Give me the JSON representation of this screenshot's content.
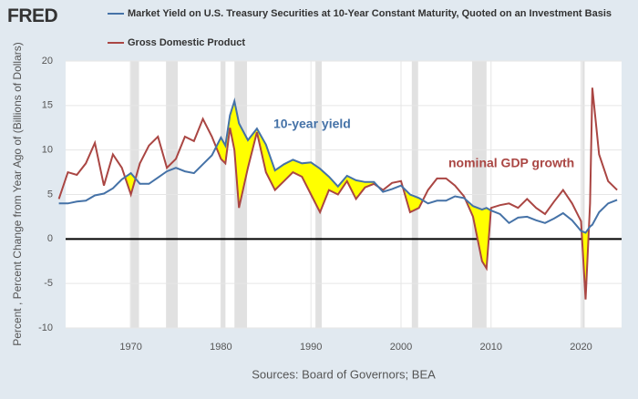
{
  "chart_data": {
    "type": "line",
    "logo": "FRED",
    "y_axis_label": "Percent , Percent Change from Year Ago of (Billions of Dollars)",
    "source": "Sources: Board of Governors; BEA",
    "annotations": [
      "10-year yield",
      "nominal GDP growth"
    ],
    "x": [
      1962,
      1963,
      1964,
      1965,
      1966,
      1967,
      1968,
      1969,
      1970,
      1971,
      1972,
      1973,
      1974,
      1975,
      1976,
      1977,
      1978,
      1979,
      1980,
      1980.5,
      1981,
      1981.5,
      1982,
      1983,
      1984,
      1985,
      1986,
      1987,
      1988,
      1989,
      1990,
      1991,
      1992,
      1993,
      1994,
      1995,
      1996,
      1997,
      1998,
      1999,
      2000,
      2001,
      2002,
      2003,
      2004,
      2005,
      2006,
      2007,
      2008,
      2009,
      2009.5,
      2010,
      2011,
      2012,
      2013,
      2014,
      2015,
      2016,
      2017,
      2018,
      2019,
      2020,
      2020.5,
      2021,
      2021.25,
      2022,
      2023,
      2024
    ],
    "series": [
      {
        "name": "Market Yield on U.S. Treasury Securities at 10-Year Constant Maturity, Quoted on an Investment Basis",
        "color": "#4572a7",
        "values": [
          4.0,
          4.0,
          4.2,
          4.3,
          4.9,
          5.1,
          5.7,
          6.7,
          7.4,
          6.2,
          6.2,
          6.9,
          7.6,
          8.0,
          7.6,
          7.4,
          8.4,
          9.4,
          11.4,
          10.5,
          13.9,
          15.5,
          13.0,
          11.1,
          12.4,
          10.6,
          7.7,
          8.4,
          8.9,
          8.5,
          8.6,
          7.9,
          7.0,
          5.9,
          7.1,
          6.6,
          6.4,
          6.4,
          5.3,
          5.6,
          6.0,
          5.0,
          4.6,
          4.0,
          4.3,
          4.3,
          4.8,
          4.6,
          3.7,
          3.3,
          3.5,
          3.2,
          2.8,
          1.8,
          2.4,
          2.5,
          2.1,
          1.8,
          2.3,
          2.9,
          2.1,
          0.9,
          0.7,
          1.4,
          1.6,
          3.0,
          4.0,
          4.4
        ]
      },
      {
        "name": "Gross Domestic Product",
        "color": "#aa4643",
        "values": [
          4.5,
          7.5,
          7.2,
          8.5,
          10.8,
          6.0,
          9.5,
          8.0,
          5.0,
          8.5,
          10.5,
          11.5,
          8.0,
          9.0,
          11.5,
          11.0,
          13.5,
          11.5,
          9.0,
          8.5,
          12.5,
          10.0,
          3.5,
          8.0,
          12.0,
          7.5,
          5.5,
          6.5,
          7.5,
          7.0,
          5.0,
          3.0,
          5.5,
          5.0,
          6.5,
          4.5,
          5.8,
          6.2,
          5.5,
          6.3,
          6.5,
          3.0,
          3.5,
          5.5,
          6.8,
          6.8,
          6.0,
          4.8,
          2.5,
          -2.5,
          -3.3,
          3.5,
          3.8,
          4.0,
          3.5,
          4.5,
          3.5,
          2.8,
          4.2,
          5.5,
          4.0,
          2.0,
          -6.8,
          4.0,
          17.0,
          9.5,
          6.5,
          5.5
        ]
      }
    ],
    "gap_fill_color": "#ffff00",
    "recessions": [
      [
        1969.9,
        1970.9
      ],
      [
        1973.9,
        1975.2
      ],
      [
        1980.0,
        1980.5
      ],
      [
        1981.5,
        1982.9
      ],
      [
        1990.5,
        1991.2
      ],
      [
        2001.2,
        2001.9
      ],
      [
        2007.9,
        2009.5
      ],
      [
        2020.1,
        2020.4
      ]
    ],
    "recession_color": "#e1e1e1",
    "xlim": [
      1962.75,
      2024.5
    ],
    "xticks": [
      1970,
      1980,
      1990,
      2000,
      2010,
      2020
    ],
    "ylim": [
      -10,
      20
    ],
    "yticks": [
      -10,
      -5,
      0,
      5,
      10,
      15,
      20
    ],
    "grid": true
  }
}
